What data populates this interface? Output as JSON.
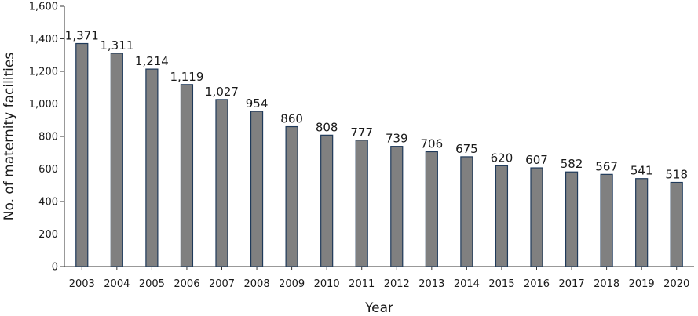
{
  "chart_data": {
    "type": "bar",
    "title": "",
    "xlabel": "Year",
    "ylabel": "No. of maternity facilities",
    "categories": [
      "2003",
      "2004",
      "2005",
      "2006",
      "2007",
      "2008",
      "2009",
      "2010",
      "2011",
      "2012",
      "2013",
      "2014",
      "2015",
      "2016",
      "2017",
      "2018",
      "2019",
      "2020"
    ],
    "values": [
      1371,
      1311,
      1214,
      1119,
      1027,
      954,
      860,
      808,
      777,
      739,
      706,
      675,
      620,
      607,
      582,
      567,
      541,
      518
    ],
    "data_labels": [
      "1,371",
      "1,311",
      "1,214",
      "1,119",
      "1,027",
      "954",
      "860",
      "808",
      "777",
      "739",
      "706",
      "675",
      "620",
      "607",
      "582",
      "567",
      "541",
      "518"
    ],
    "ylim": [
      0,
      1600
    ],
    "yticks": [
      0,
      200,
      400,
      600,
      800,
      1000,
      1200,
      1400,
      1600
    ],
    "ytick_labels": [
      "0",
      "200",
      "400",
      "600",
      "800",
      "1,000",
      "1,200",
      "1,400",
      "1,600"
    ],
    "grid": false,
    "legend": "none",
    "bar_fill": "#808080",
    "bar_stroke": "#1f3a5a"
  }
}
